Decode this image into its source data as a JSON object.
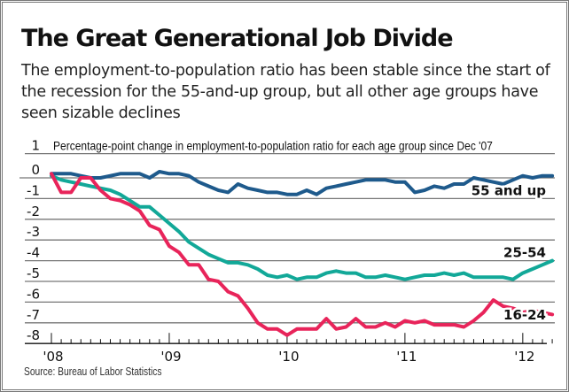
{
  "title": "The Great Generational Job Divide",
  "subtitle": "The employment-to-population ratio has been stable since the start of the recession for the 55-and-up group, but all other age groups have seen sizable declines",
  "source": "Source: Bureau of Labor Statistics",
  "chart_data": {
    "type": "line",
    "title": "The Great Generational Job Divide",
    "annotation": "Percentage-point change in employment-to-population ratio for each age group since Dec '07",
    "xlabel": "",
    "ylabel": "",
    "ylim": [
      -8,
      1
    ],
    "yticks": [
      1,
      0,
      -1,
      -2,
      -3,
      -4,
      -5,
      -6,
      -7,
      -8
    ],
    "ytick_labels": [
      "1",
      "0",
      "-1",
      "-2",
      "-3",
      "-4",
      "-5",
      "-6",
      "-7",
      "-8"
    ],
    "x_major_ticks": [
      {
        "index": 0,
        "label": "'08"
      },
      {
        "index": 12,
        "label": "'09"
      },
      {
        "index": 24,
        "label": "'10"
      },
      {
        "index": 36,
        "label": "'11"
      },
      {
        "index": 48,
        "label": "'12"
      }
    ],
    "x_minor_tick_count": 52,
    "x_unit": "month",
    "grid": true,
    "series": [
      {
        "name": "55 and up",
        "color": "#1e5a8c",
        "values": [
          0.2,
          0.2,
          0.2,
          0.1,
          0.0,
          0.0,
          0.1,
          0.2,
          0.2,
          0.2,
          0.0,
          0.3,
          0.2,
          0.2,
          0.1,
          -0.2,
          -0.4,
          -0.6,
          -0.7,
          -0.3,
          -0.5,
          -0.6,
          -0.7,
          -0.7,
          -0.8,
          -0.8,
          -0.6,
          -0.8,
          -0.5,
          -0.4,
          -0.3,
          -0.2,
          -0.1,
          -0.1,
          -0.1,
          -0.2,
          -0.2,
          -0.7,
          -0.6,
          -0.4,
          -0.5,
          -0.3,
          -0.3,
          0.0,
          -0.1,
          -0.2,
          -0.3,
          -0.1,
          0.1,
          0.0,
          0.1,
          0.1
        ]
      },
      {
        "name": "25-54",
        "color": "#12a898",
        "values": [
          0.1,
          -0.1,
          -0.2,
          -0.3,
          -0.4,
          -0.5,
          -0.6,
          -0.8,
          -1.1,
          -1.4,
          -1.4,
          -1.8,
          -2.2,
          -2.6,
          -3.1,
          -3.4,
          -3.7,
          -3.9,
          -4.1,
          -4.1,
          -4.2,
          -4.4,
          -4.7,
          -4.8,
          -4.7,
          -4.9,
          -4.8,
          -4.8,
          -4.6,
          -4.5,
          -4.6,
          -4.6,
          -4.8,
          -4.8,
          -4.7,
          -4.8,
          -4.9,
          -4.8,
          -4.7,
          -4.7,
          -4.6,
          -4.7,
          -4.6,
          -4.8,
          -4.8,
          -4.8,
          -4.8,
          -4.9,
          -4.6,
          -4.4,
          -4.2,
          -4.0
        ]
      },
      {
        "name": "16-24",
        "color": "#e8245a",
        "values": [
          0.2,
          -0.7,
          -0.7,
          0.0,
          0.0,
          -0.6,
          -1.0,
          -1.1,
          -1.3,
          -1.6,
          -2.3,
          -2.5,
          -3.3,
          -3.6,
          -4.2,
          -4.2,
          -4.9,
          -5.0,
          -5.5,
          -5.7,
          -6.3,
          -7.0,
          -7.3,
          -7.3,
          -7.6,
          -7.3,
          -7.3,
          -7.3,
          -6.8,
          -7.3,
          -7.2,
          -6.8,
          -7.2,
          -7.2,
          -7.0,
          -7.2,
          -6.9,
          -7.0,
          -6.9,
          -7.1,
          -7.1,
          -7.1,
          -7.2,
          -6.9,
          -6.5,
          -5.9,
          -6.2,
          -6.3,
          -6.5,
          -6.4,
          -6.5,
          -6.6
        ]
      }
    ],
    "series_labels": [
      "55 and up",
      "25-54",
      "16-24"
    ]
  }
}
